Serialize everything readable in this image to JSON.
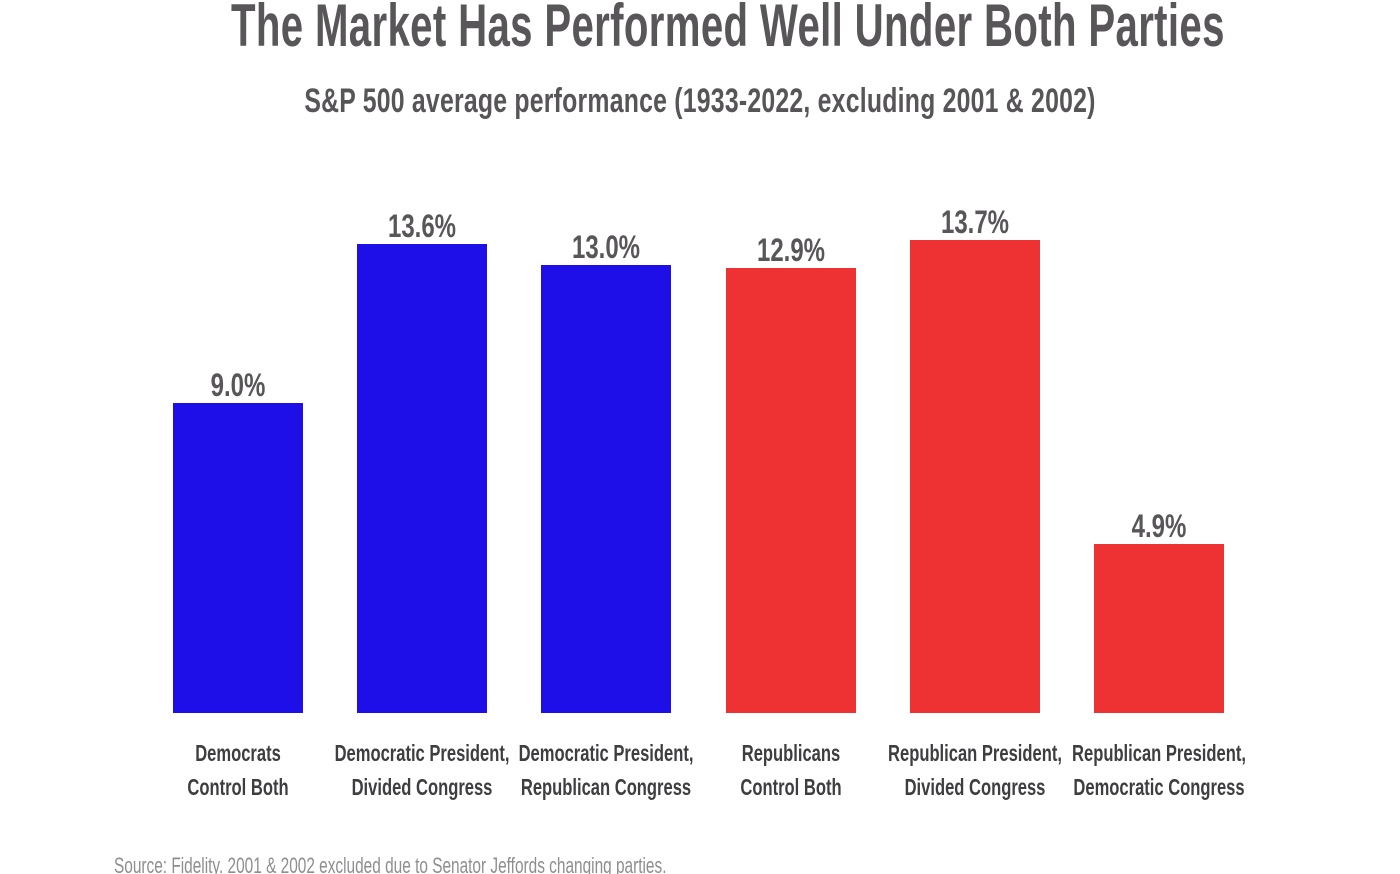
{
  "chart_data": {
    "type": "bar",
    "title": "The Market Has Performed Well Under Both Parties",
    "subtitle": "S&P 500 average performance (1933-2022, excluding 2001 & 2002)",
    "categories": [
      [
        "Democrats",
        "Control Both"
      ],
      [
        "Democratic President,",
        "Divided Congress"
      ],
      [
        "Democratic President,",
        "Republican Congress"
      ],
      [
        "Republicans",
        "Control Both"
      ],
      [
        "Republican President,",
        "Divided Congress"
      ],
      [
        "Republican President,",
        "Democratic Congress"
      ]
    ],
    "values": [
      9.0,
      13.6,
      13.0,
      12.9,
      13.7,
      4.9
    ],
    "value_labels": [
      "9.0%",
      "13.6%",
      "13.0%",
      "12.9%",
      "13.7%",
      "4.9%"
    ],
    "bar_colors": [
      "#1e0fe9",
      "#1e0fe9",
      "#1e0fe9",
      "#ee3233",
      "#ee3233",
      "#ee3233"
    ],
    "colors": {
      "democrat_blue": "#1e0fe9",
      "republican_red": "#ee3233",
      "title_gray": "#595659",
      "category_gray": "#3e3d40",
      "source_gray": "#8f8d90",
      "background": "#ffffff"
    },
    "xlabel": "",
    "ylabel": "",
    "ylim": [
      0,
      14.5
    ],
    "grid": false,
    "legend": false,
    "axis_lines": false,
    "source_note": "Source: Fidelity. 2001 & 2002 excluded due to Senator Jeffords changing parties."
  }
}
